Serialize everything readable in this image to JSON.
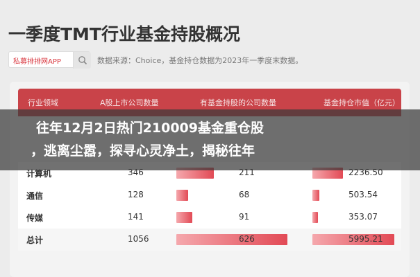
{
  "page": {
    "title": "一季度TMT行业基金持股概况",
    "search_label": "私募排排网APP",
    "source_text": "数据来源：Choice，基金持仓数据为2023年一季度末数据。"
  },
  "table": {
    "headers": [
      "行业领域",
      "A股上市公司数量",
      "有基金持股的公司数量",
      "基金持仓市值（亿元）"
    ],
    "rows": [
      {
        "name": "计算机",
        "listed": "346",
        "held": "211",
        "held_value": 211,
        "mv": "2236.50",
        "mv_value": 2236.5
      },
      {
        "name": "通信",
        "listed": "128",
        "held": "68",
        "held_value": 68,
        "mv": "503.54",
        "mv_value": 503.54
      },
      {
        "name": "传媒",
        "listed": "141",
        "held": "91",
        "held_value": 91,
        "mv": "353.07",
        "mv_value": 353.07
      },
      {
        "name": "总计",
        "listed": "1056",
        "held": "626",
        "held_value": 626,
        "mv": "5995.21",
        "mv_value": 5995.21
      }
    ]
  },
  "overlay": {
    "line1": "往年12月2日热门210009基金重仓股",
    "line2": "，逃离尘嚣，探寻心灵净土，揭秘往年"
  }
}
